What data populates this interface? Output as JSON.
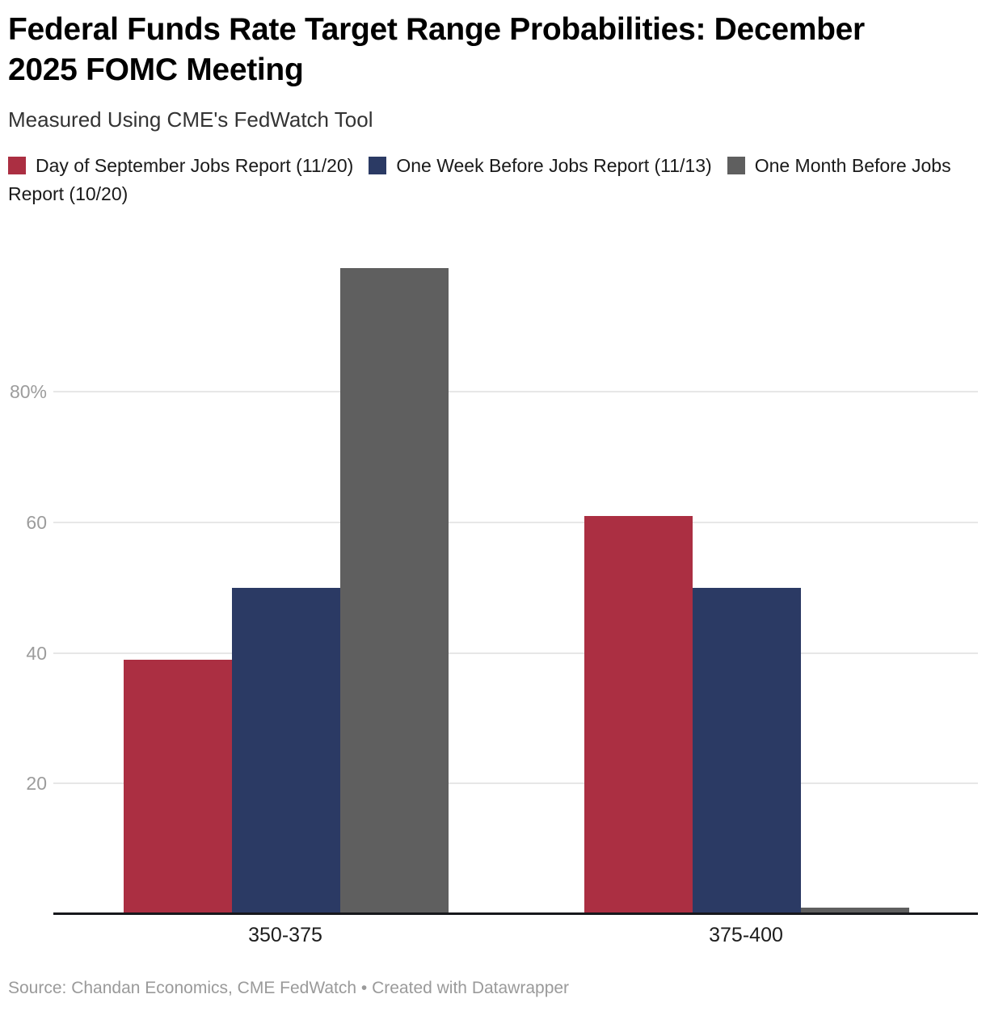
{
  "header": {
    "title": "Federal Funds Rate Target Range Probabilities: December 2025 FOMC Meeting",
    "subtitle": "Measured Using CME's FedWatch Tool"
  },
  "chart_data": {
    "type": "bar",
    "categories": [
      "350-375",
      "375-400"
    ],
    "series": [
      {
        "name": "Day of September Jobs Report (11/20)",
        "color": "#ab2f42",
        "values": [
          39,
          61
        ]
      },
      {
        "name": "One Week Before Jobs Report (11/13)",
        "color": "#2b3a64",
        "values": [
          50,
          50
        ]
      },
      {
        "name": "One Month Before Jobs Report (10/20)",
        "color": "#5f5f5f",
        "values": [
          99,
          1
        ]
      }
    ],
    "title": "Federal Funds Rate Target Range Probabilities: December 2025 FOMC Meeting",
    "subtitle": "Measured Using CME's FedWatch Tool",
    "xlabel": "",
    "ylabel": "",
    "ylim": [
      0,
      100
    ],
    "yticks": [
      20,
      40,
      60,
      80
    ],
    "ytick_labels": [
      "20",
      "40",
      "60",
      "80%"
    ],
    "grid": true,
    "legend_position": "top"
  },
  "footer": {
    "source": "Source: Chandan Economics, CME FedWatch • Created with Datawrapper"
  }
}
